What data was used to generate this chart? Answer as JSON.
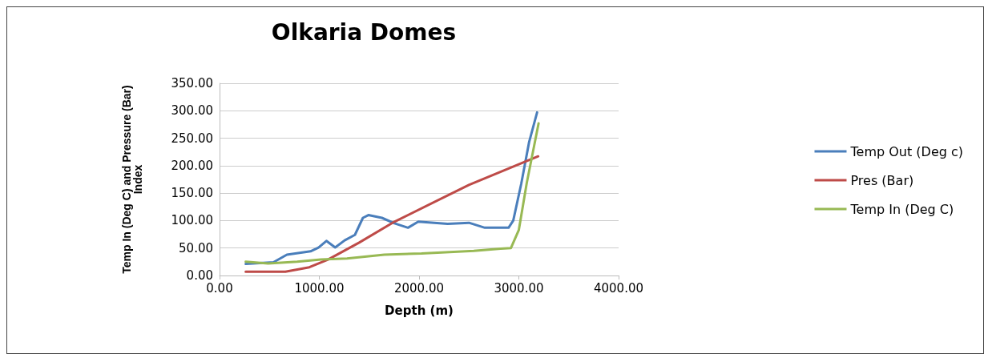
{
  "chart_data": {
    "type": "line",
    "title": "Olkaria Domes",
    "xlabel": "Depth (m)",
    "ylabel": "Temp In (Deg C) and Pressure (Bar)\nIndex",
    "series": [
      {
        "name": "Temp Out (Deg c)",
        "color": "#4a7ebb",
        "x": [
          262,
          540,
          675,
          912,
          992,
          1071,
          1159,
          1254,
          1357,
          1437,
          1492,
          1627,
          1754,
          1889,
          1992,
          2286,
          2500,
          2659,
          2897,
          2944,
          3024,
          3103,
          3183
        ],
        "values": [
          21,
          24,
          38,
          44,
          51,
          63,
          51,
          64,
          74,
          105,
          110,
          105,
          95,
          87,
          98,
          94,
          96,
          87,
          87,
          100,
          167,
          243,
          297
        ]
      },
      {
        "name": "Pres (Bar)",
        "color": "#be4b48",
        "x": [
          262,
          660,
          900,
          1087,
          1400,
          1754,
          2500,
          3194
        ],
        "values": [
          7,
          7,
          15,
          29,
          60,
          98,
          165,
          217
        ]
      },
      {
        "name": "Temp In (Deg C)",
        "color": "#98b954",
        "x": [
          262,
          487,
          778,
          1016,
          1278,
          1651,
          2024,
          2548,
          2817,
          2921,
          3000,
          3079,
          3198
        ],
        "values": [
          25,
          22,
          25,
          29,
          31,
          38,
          40,
          45,
          49,
          50,
          83,
          168,
          277
        ]
      }
    ],
    "xlim": [
      0,
      4000
    ],
    "xticks": [
      {
        "value": 0,
        "label": "0.00"
      },
      {
        "value": 1000,
        "label": "1000.00"
      },
      {
        "value": 2000,
        "label": "2000.00"
      },
      {
        "value": 3000,
        "label": "3000.00"
      },
      {
        "value": 4000,
        "label": "4000.00"
      }
    ],
    "ylim": [
      0,
      350
    ],
    "yticks": [
      {
        "value": 0,
        "label": "0.00"
      },
      {
        "value": 50,
        "label": "50.00"
      },
      {
        "value": 100,
        "label": "100.00"
      },
      {
        "value": 150,
        "label": "150.00"
      },
      {
        "value": 200,
        "label": "200.00"
      },
      {
        "value": 250,
        "label": "250.00"
      },
      {
        "value": 300,
        "label": "300.00"
      },
      {
        "value": 350,
        "label": "350.00"
      }
    ],
    "grid": "y",
    "legend": "right",
    "marker": "none",
    "line_style": "solid"
  }
}
